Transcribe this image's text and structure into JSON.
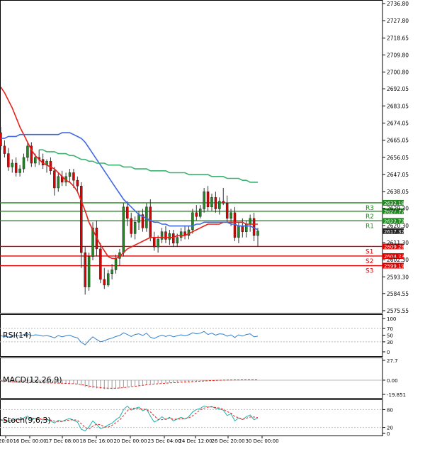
{
  "chart_data": [
    {
      "type": "candlestick",
      "title": "",
      "ylim": [
        2575.55,
        2736.8
      ],
      "y_ticks": [
        "2736.80",
        "2727.80",
        "2718.65",
        "2709.80",
        "2700.80",
        "2692.05",
        "2683.05",
        "2674.05",
        "2665.05",
        "2656.05",
        "2647.05",
        "2638.05",
        "2629.30",
        "2620.30",
        "2611.30",
        "2602.30",
        "2593.30",
        "2584.55",
        "2575.55"
      ],
      "x_ticks": [
        "20:00",
        "16 Dec 00:00",
        "17 Dec 08:00",
        "18 Dec 16:00",
        "20 Dec 00:00",
        "23 Dec 04:00",
        "24 Dec 12:00",
        "26 Dec 20:00",
        "30 Dec 00:00"
      ],
      "current_price": "2617.32",
      "levels": [
        {
          "name": "R3",
          "value": 2632.18,
          "label": "2632.18",
          "color": "#1f8a1f"
        },
        {
          "name": "R2",
          "value": 2627.77,
          "label": "2627.77",
          "color": "#1f8a1f"
        },
        {
          "name": "R1",
          "value": 2622.72,
          "label": "2622.72",
          "color": "#1f8a1f"
        },
        {
          "name": "S1",
          "value": 2609.28,
          "label": "2609.28",
          "color": "#e00000"
        },
        {
          "name": "S2",
          "value": 2604.23,
          "label": "2604.23",
          "color": "#e00000"
        },
        {
          "name": "S3",
          "value": 2599.19,
          "label": "2599.19",
          "color": "#e00000"
        }
      ],
      "candles": [
        [
          2669,
          2672,
          2660,
          2662
        ],
        [
          2662,
          2665,
          2656,
          2658
        ],
        [
          2658,
          2661,
          2649,
          2651
        ],
        [
          2651,
          2655,
          2648,
          2653
        ],
        [
          2653,
          2656,
          2646,
          2648
        ],
        [
          2648,
          2652,
          2646,
          2650
        ],
        [
          2650,
          2658,
          2648,
          2656
        ],
        [
          2656,
          2664,
          2654,
          2662
        ],
        [
          2662,
          2664,
          2651,
          2653
        ],
        [
          2653,
          2658,
          2651,
          2656
        ],
        [
          2656,
          2660,
          2652,
          2655
        ],
        [
          2655,
          2658,
          2650,
          2652
        ],
        [
          2652,
          2655,
          2648,
          2654
        ],
        [
          2654,
          2656,
          2647,
          2649
        ],
        [
          2649,
          2651,
          2636,
          2640
        ],
        [
          2640,
          2648,
          2638,
          2646
        ],
        [
          2646,
          2649,
          2641,
          2643
        ],
        [
          2643,
          2648,
          2641,
          2646
        ],
        [
          2646,
          2650,
          2643,
          2648
        ],
        [
          2648,
          2650,
          2640,
          2644
        ],
        [
          2644,
          2646,
          2638,
          2641
        ],
        [
          2641,
          2643,
          2598,
          2606
        ],
        [
          2606,
          2609,
          2584,
          2588
        ],
        [
          2588,
          2606,
          2586,
          2604
        ],
        [
          2604,
          2622,
          2602,
          2619
        ],
        [
          2619,
          2623,
          2604,
          2608
        ],
        [
          2608,
          2611,
          2590,
          2592
        ],
        [
          2592,
          2598,
          2587,
          2589
        ],
        [
          2589,
          2597,
          2588,
          2595
        ],
        [
          2595,
          2600,
          2592,
          2597
        ],
        [
          2597,
          2605,
          2595,
          2603
        ],
        [
          2603,
          2608,
          2599,
          2606
        ],
        [
          2606,
          2632,
          2604,
          2630
        ],
        [
          2630,
          2633,
          2620,
          2624
        ],
        [
          2624,
          2627,
          2614,
          2616
        ],
        [
          2616,
          2625,
          2613,
          2622
        ],
        [
          2622,
          2628,
          2618,
          2626
        ],
        [
          2626,
          2629,
          2617,
          2619
        ],
        [
          2619,
          2632,
          2617,
          2630
        ],
        [
          2630,
          2634,
          2612,
          2614
        ],
        [
          2614,
          2617,
          2607,
          2609
        ],
        [
          2609,
          2615,
          2606,
          2613
        ],
        [
          2613,
          2619,
          2611,
          2617
        ],
        [
          2617,
          2620,
          2611,
          2613
        ],
        [
          2613,
          2618,
          2610,
          2616
        ],
        [
          2616,
          2618,
          2609,
          2611
        ],
        [
          2611,
          2616,
          2609,
          2614
        ],
        [
          2614,
          2619,
          2612,
          2617
        ],
        [
          2617,
          2620,
          2613,
          2615
        ],
        [
          2615,
          2620,
          2613,
          2618
        ],
        [
          2618,
          2629,
          2616,
          2627
        ],
        [
          2627,
          2631,
          2623,
          2625
        ],
        [
          2625,
          2631,
          2624,
          2629
        ],
        [
          2629,
          2640,
          2627,
          2638
        ],
        [
          2638,
          2641,
          2628,
          2630
        ],
        [
          2630,
          2637,
          2628,
          2635
        ],
        [
          2635,
          2638,
          2627,
          2629
        ],
        [
          2629,
          2635,
          2626,
          2633
        ],
        [
          2633,
          2640,
          2631,
          2632
        ],
        [
          2632,
          2636,
          2622,
          2624
        ],
        [
          2624,
          2629,
          2620,
          2627
        ],
        [
          2627,
          2630,
          2612,
          2614
        ],
        [
          2614,
          2622,
          2611,
          2620
        ],
        [
          2620,
          2624,
          2614,
          2617
        ],
        [
          2617,
          2623,
          2614,
          2621
        ],
        [
          2621,
          2626,
          2617,
          2624
        ],
        [
          2624,
          2627,
          2612,
          2615
        ],
        [
          2615,
          2619,
          2609,
          2617.32
        ]
      ],
      "series": [
        {
          "name": "",
          "color": "#e8211b",
          "values": [
            2693,
            2690,
            2686,
            2682,
            2677,
            2672,
            2668,
            2664,
            2660,
            2657,
            2655,
            2653,
            2652,
            2651,
            2650,
            2648,
            2646,
            2644,
            2643,
            2641,
            2638,
            2633,
            2628,
            2622,
            2618,
            2614,
            2610,
            2607,
            2604,
            2603,
            2603,
            2604,
            2606,
            2608,
            2609,
            2610,
            2611,
            2612,
            2613,
            2614,
            2614,
            2614,
            2614,
            2614,
            2614,
            2614,
            2615,
            2615,
            2615,
            2616,
            2617,
            2618,
            2619,
            2620,
            2621,
            2621,
            2621,
            2621,
            2622,
            2622,
            2622,
            2622,
            2622,
            2622,
            2621,
            2621,
            2621,
            2621
          ]
        },
        {
          "name": "",
          "color": "#4169e1",
          "values": [
            2666,
            2666,
            2667,
            2667,
            2667,
            2668,
            2668,
            2668,
            2668,
            2668,
            2668,
            2668,
            2668,
            2668,
            2668,
            2668,
            2669,
            2669,
            2669,
            2668,
            2667,
            2666,
            2664,
            2661,
            2658,
            2655,
            2652,
            2649,
            2646,
            2643,
            2640,
            2637,
            2634,
            2632,
            2630,
            2628,
            2626,
            2625,
            2624,
            2623,
            2622,
            2622,
            2621,
            2621,
            2620,
            2620,
            2620,
            2620,
            2620,
            2620,
            2620,
            2621,
            2621,
            2622,
            2622,
            2622,
            2622,
            2622,
            2622,
            2622,
            2621,
            2621,
            2620,
            2620,
            2620,
            2620,
            2619,
            2618
          ]
        },
        {
          "name": "",
          "color": "#3cb371",
          "values": [
            null,
            null,
            null,
            null,
            null,
            null,
            null,
            null,
            null,
            null,
            2660,
            2660,
            2659,
            2659,
            2659,
            2658,
            2658,
            2658,
            2657,
            2657,
            2656,
            2655,
            2655,
            2654,
            2654,
            2653,
            2653,
            2653,
            2652,
            2652,
            2652,
            2652,
            2651,
            2651,
            2651,
            2650,
            2650,
            2650,
            2650,
            2649,
            2649,
            2649,
            2649,
            2649,
            2648,
            2648,
            2648,
            2648,
            2648,
            2647,
            2647,
            2647,
            2647,
            2647,
            2647,
            2646,
            2646,
            2646,
            2646,
            2645,
            2645,
            2645,
            2645,
            2644,
            2644,
            2643,
            2643,
            2643
          ]
        }
      ]
    },
    {
      "type": "line",
      "title": "RSI(14)",
      "ylim": [
        0,
        100
      ],
      "y_ticks": [
        "100",
        "70",
        "50",
        "30",
        "0"
      ],
      "series": [
        {
          "name": "",
          "color": "#2d7fd1",
          "values": [
            48,
            46,
            44,
            47,
            49,
            47,
            52,
            54,
            48,
            51,
            50,
            47,
            49,
            46,
            42,
            49,
            45,
            48,
            50,
            45,
            42,
            28,
            21,
            34,
            45,
            37,
            30,
            33,
            38,
            41,
            46,
            49,
            57,
            52,
            46,
            52,
            54,
            49,
            56,
            44,
            40,
            46,
            50,
            46,
            50,
            45,
            48,
            51,
            48,
            51,
            57,
            54,
            56,
            61,
            52,
            56,
            50,
            54,
            53,
            47,
            51,
            43,
            51,
            47,
            52,
            54,
            45,
            47
          ]
        }
      ]
    },
    {
      "type": "line",
      "title": "MACD(12,26,9)",
      "ylim": [
        -19.851,
        27.7
      ],
      "y_ticks": [
        "27.7",
        "0.00",
        "-19.851"
      ],
      "histogram": [
        -1,
        -1.5,
        -2,
        -2.5,
        -2.8,
        -3,
        -3.2,
        -3.3,
        -3.5,
        -3.6,
        -3.6,
        -3.7,
        -3.8,
        -3.9,
        -4,
        -4.2,
        -4.4,
        -4.6,
        -4.9,
        -5.2,
        -5.8,
        -7.5,
        -9.5,
        -10.5,
        -11,
        -11.5,
        -12,
        -12.5,
        -12.6,
        -12.4,
        -12,
        -11.5,
        -10.5,
        -9.5,
        -8.8,
        -8,
        -7.2,
        -6.5,
        -5.8,
        -5.2,
        -4.8,
        -4.5,
        -4.2,
        -3.9,
        -3.6,
        -3.3,
        -3,
        -2.8,
        -2.5,
        -2.2,
        -1.9,
        -1.5,
        -1.2,
        -0.9,
        -0.6,
        -0.4,
        -0.3,
        -0.2,
        -0.1,
        0,
        0,
        0.1,
        0,
        0,
        0.1,
        0.1,
        0,
        0
      ],
      "series": [
        {
          "name": "",
          "color": "#e8211b",
          "values": [
            -1,
            -1.4,
            -1.8,
            -2.2,
            -2.6,
            -2.9,
            -3.1,
            -3.3,
            -3.4,
            -3.5,
            -3.6,
            -3.7,
            -3.8,
            -3.9,
            -4,
            -4.1,
            -4.3,
            -4.5,
            -4.7,
            -5,
            -5.4,
            -6.2,
            -7.2,
            -8.2,
            -9,
            -9.8,
            -10.4,
            -10.9,
            -11.2,
            -11.3,
            -11.2,
            -10.9,
            -10.4,
            -9.8,
            -9.2,
            -8.6,
            -7.9,
            -7.2,
            -6.5,
            -5.9,
            -5.4,
            -5,
            -4.6,
            -4.2,
            -3.8,
            -3.5,
            -3.2,
            -2.9,
            -2.6,
            -2.3,
            -2,
            -1.7,
            -1.4,
            -1.1,
            -0.8,
            -0.5,
            -0.3,
            -0.1,
            0.1,
            0.2,
            0.3,
            0.4,
            0.4,
            0.5,
            0.6,
            0.6,
            0.6,
            0.5
          ]
        }
      ]
    },
    {
      "type": "line",
      "title": "Stoch(9,6,3)",
      "ylim": [
        0,
        100
      ],
      "y_ticks": [
        "80",
        "20",
        "0"
      ],
      "series": [
        {
          "name": "",
          "color": "#20b2aa",
          "values": [
            45,
            42,
            40,
            44,
            48,
            46,
            52,
            58,
            46,
            50,
            49,
            45,
            47,
            42,
            35,
            44,
            40,
            46,
            50,
            44,
            38,
            14,
            8,
            22,
            42,
            30,
            16,
            20,
            28,
            34,
            46,
            55,
            80,
            92,
            78,
            84,
            88,
            76,
            82,
            58,
            38,
            44,
            56,
            46,
            54,
            42,
            48,
            54,
            48,
            56,
            72,
            80,
            84,
            92,
            88,
            90,
            84,
            82,
            78,
            60,
            66,
            42,
            52,
            46,
            56,
            62,
            46,
            52
          ]
        },
        {
          "name": "",
          "color": "#e8211b",
          "values": [
            46,
            44,
            42,
            42,
            44,
            46,
            48,
            52,
            52,
            50,
            49,
            48,
            47,
            45,
            41,
            40,
            40,
            43,
            45,
            46,
            44,
            32,
            20,
            15,
            24,
            31,
            29,
            22,
            21,
            27,
            36,
            45,
            60,
            76,
            83,
            85,
            83,
            82,
            80,
            72,
            59,
            47,
            46,
            48,
            52,
            47,
            48,
            48,
            50,
            52,
            59,
            69,
            79,
            85,
            88,
            89,
            87,
            85,
            81,
            73,
            68,
            56,
            53,
            47,
            51,
            55,
            55,
            53
          ]
        }
      ]
    }
  ]
}
